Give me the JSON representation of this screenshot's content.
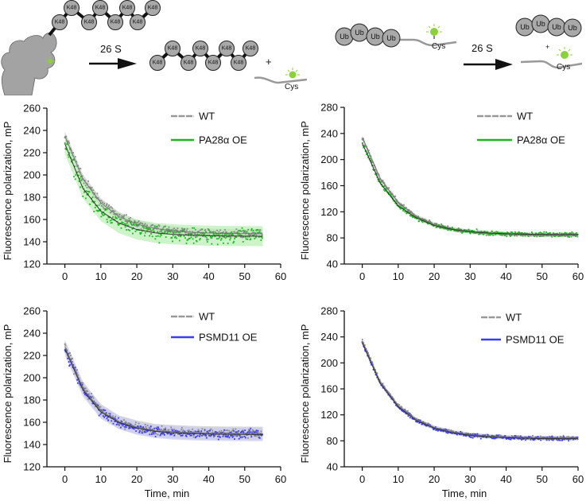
{
  "schematic_left": {
    "chain_label": "K48",
    "enzyme_label": "26 S",
    "plus": "+",
    "residue_label": "Cys"
  },
  "schematic_right": {
    "ub_label": "Ub",
    "enzyme_label": "26 S",
    "plus": "+",
    "residue_label": "Cys"
  },
  "colors": {
    "wt": "#8a8a8a",
    "wt_band": "#d4d4d4",
    "pa28": "#1fb51f",
    "pa28_band": "#b6efb0",
    "psmd11": "#3b3bf5",
    "psmd11_band": "#cacaf6",
    "fit": "#333333"
  },
  "chart_data": [
    {
      "id": "top-left",
      "type": "scatter",
      "ylabel": "Fluorescence polarization, mP",
      "xlabel": "",
      "xlim": [
        -5,
        60
      ],
      "ylim": [
        120,
        260
      ],
      "xticks": [
        "0",
        "10",
        "20",
        "30",
        "40",
        "50",
        "60"
      ],
      "yticks": [
        "120",
        "140",
        "160",
        "180",
        "200",
        "220",
        "240",
        "260"
      ],
      "legend": "top-right",
      "x": [
        0,
        5,
        10,
        15,
        20,
        25,
        30,
        35,
        40,
        45,
        50,
        55
      ],
      "series": [
        {
          "name": "WT",
          "color": "wt",
          "noise": 3,
          "band": 4,
          "y": [
            235,
            196.5,
            175,
            162.7,
            155.8,
            152,
            149.8,
            148.6,
            147.9,
            147.5,
            147.3,
            147.2
          ]
        },
        {
          "name": "PA28α OE",
          "color": "pa28",
          "noise": 6,
          "band": 9,
          "y": [
            228,
            188,
            167.6,
            156.8,
            151,
            148,
            146.7,
            145.9,
            145.5,
            145.2,
            145.1,
            145
          ]
        }
      ]
    },
    {
      "id": "top-right",
      "type": "scatter",
      "ylabel": "Fluorescence polarization, mP",
      "xlabel": "",
      "xlim": [
        -5,
        60
      ],
      "ylim": [
        40,
        280
      ],
      "xticks": [
        "0",
        "10",
        "20",
        "30",
        "40",
        "50",
        "60"
      ],
      "yticks": [
        "40",
        "80",
        "120",
        "160",
        "200",
        "240",
        "280"
      ],
      "legend": "top-right",
      "x": [
        0,
        5,
        10,
        15,
        20,
        25,
        30,
        35,
        40,
        45,
        50,
        55,
        60
      ],
      "series": [
        {
          "name": "WT",
          "color": "wt",
          "noise": 2.5,
          "band": 3,
          "y": [
            234,
            170.6,
            134,
            112.8,
            100.6,
            93.6,
            89.5,
            87.2,
            85.8,
            85.1,
            84.6,
            84.4,
            84.2
          ]
        },
        {
          "name": "PA28α OE",
          "color": "pa28",
          "noise": 3,
          "band": 3,
          "y": [
            225,
            164,
            129,
            110.8,
            99,
            93.1,
            89.4,
            87.5,
            86.4,
            85.8,
            85.4,
            85.3,
            85.1
          ]
        }
      ]
    },
    {
      "id": "bottom-left",
      "type": "scatter",
      "ylabel": "Fluorescence polarization, mP",
      "xlabel": "Time, min",
      "xlim": [
        -5,
        60
      ],
      "ylim": [
        120,
        260
      ],
      "xticks": [
        "0",
        "10",
        "20",
        "30",
        "40",
        "50",
        "60"
      ],
      "yticks": [
        "120",
        "140",
        "160",
        "180",
        "200",
        "220",
        "240",
        "260"
      ],
      "legend": "top-right",
      "x": [
        0,
        5,
        10,
        15,
        20,
        25,
        30,
        35,
        40,
        45,
        50,
        55
      ],
      "series": [
        {
          "name": "WT",
          "color": "wt",
          "noise": 3.5,
          "band": 6,
          "y": [
            228,
            190.7,
            170.4,
            160.1,
            155.7,
            152.5,
            151.6,
            150.8,
            150.4,
            150.2,
            150.1,
            150
          ]
        },
        {
          "name": "PSMD11 OE",
          "color": "psmd11",
          "noise": 3.5,
          "band": 6,
          "y": [
            226,
            189.2,
            169.1,
            159.9,
            154.7,
            151.9,
            150.5,
            149.8,
            149.4,
            149.2,
            149.1,
            149
          ]
        }
      ]
    },
    {
      "id": "bottom-right",
      "type": "scatter",
      "ylabel": "Fluorescence polarization, mP",
      "xlabel": "Time, min",
      "xlim": [
        -5,
        60
      ],
      "ylim": [
        40,
        280
      ],
      "xticks": [
        "0",
        "10",
        "20",
        "30",
        "40",
        "50",
        "60"
      ],
      "yticks": [
        "40",
        "80",
        "120",
        "160",
        "200",
        "240",
        "280"
      ],
      "legend": "top-right",
      "x": [
        0,
        5,
        10,
        15,
        20,
        25,
        30,
        35,
        40,
        45,
        50,
        55,
        60
      ],
      "series": [
        {
          "name": "WT",
          "color": "wt",
          "noise": 2.5,
          "band": 3,
          "y": [
            234,
            170.6,
            134,
            112.8,
            100.6,
            93.6,
            89.5,
            87.2,
            85.8,
            85.1,
            84.6,
            84.4,
            84.2
          ]
        },
        {
          "name": "PSMD11 OE",
          "color": "psmd11",
          "noise": 2.5,
          "band": 3,
          "y": [
            231,
            168.4,
            132.3,
            111.4,
            99.4,
            92.5,
            88.4,
            86.2,
            84.8,
            84,
            83.6,
            83.4,
            83.2
          ]
        }
      ]
    }
  ]
}
